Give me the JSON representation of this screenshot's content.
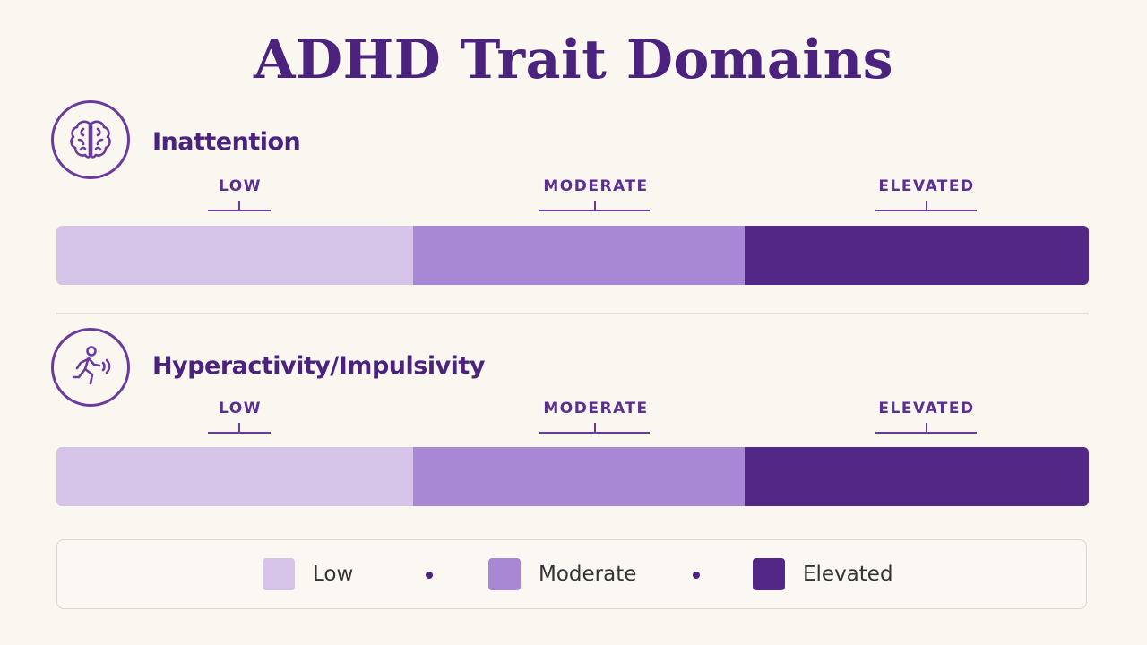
{
  "title": "ADHD Trait Domains",
  "colors": {
    "low": "#d6c3e8",
    "moderate": "#a887d4",
    "elevated": "#522785"
  },
  "scale_labels": [
    "LOW",
    "MODERATE",
    "ELEVATED"
  ],
  "domains": [
    {
      "name": "Inattention",
      "icon": "brain-icon"
    },
    {
      "name": "Hyperactivity/Impulsivity",
      "icon": "running-person-icon"
    }
  ],
  "legend": [
    {
      "label": "Low",
      "color": "#d6c3e8"
    },
    {
      "label": "Moderate",
      "color": "#a887d4"
    },
    {
      "label": "Elevated",
      "color": "#522785"
    }
  ]
}
